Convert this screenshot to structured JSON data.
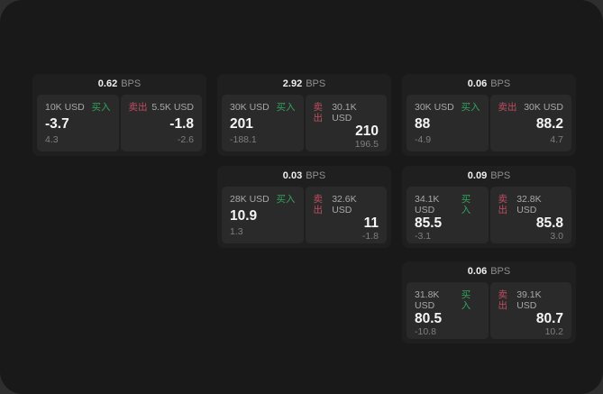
{
  "labels": {
    "buy": "买入",
    "sell": "卖出",
    "bps": "BPS"
  },
  "colors": {
    "buy_green": "#33a35d",
    "sell_red": "#bf4d60",
    "screen_bg": "#191919",
    "card_bg": "#1f1f1f",
    "panel_bg": "#2a2a2a"
  },
  "cards": [
    {
      "bps": "0.62",
      "buy": {
        "size": "10K USD",
        "price": "-3.7",
        "change": "4.3"
      },
      "sell": {
        "size": "5.5K USD",
        "price": "-1.8",
        "change": "-2.6"
      }
    },
    {
      "bps": "2.92",
      "buy": {
        "size": "30K USD",
        "price": "201",
        "change": "-188.1"
      },
      "sell": {
        "size": "30.1K USD",
        "price": "210",
        "change": "196.5"
      }
    },
    {
      "bps": "0.06",
      "buy": {
        "size": "30K USD",
        "price": "88",
        "change": "-4.9"
      },
      "sell": {
        "size": "30K USD",
        "price": "88.2",
        "change": "4.7"
      }
    },
    {
      "bps": "0.03",
      "buy": {
        "size": "28K USD",
        "price": "10.9",
        "change": "1.3"
      },
      "sell": {
        "size": "32.6K USD",
        "price": "11",
        "change": "-1.8"
      }
    },
    {
      "bps": "0.09",
      "buy": {
        "size": "34.1K USD",
        "price": "85.5",
        "change": "-3.1"
      },
      "sell": {
        "size": "32.8K USD",
        "price": "85.8",
        "change": "3.0"
      }
    },
    {
      "bps": "0.06",
      "buy": {
        "size": "31.8K USD",
        "price": "80.5",
        "change": "-10.8"
      },
      "sell": {
        "size": "39.1K USD",
        "price": "80.7",
        "change": "10.2"
      }
    }
  ]
}
